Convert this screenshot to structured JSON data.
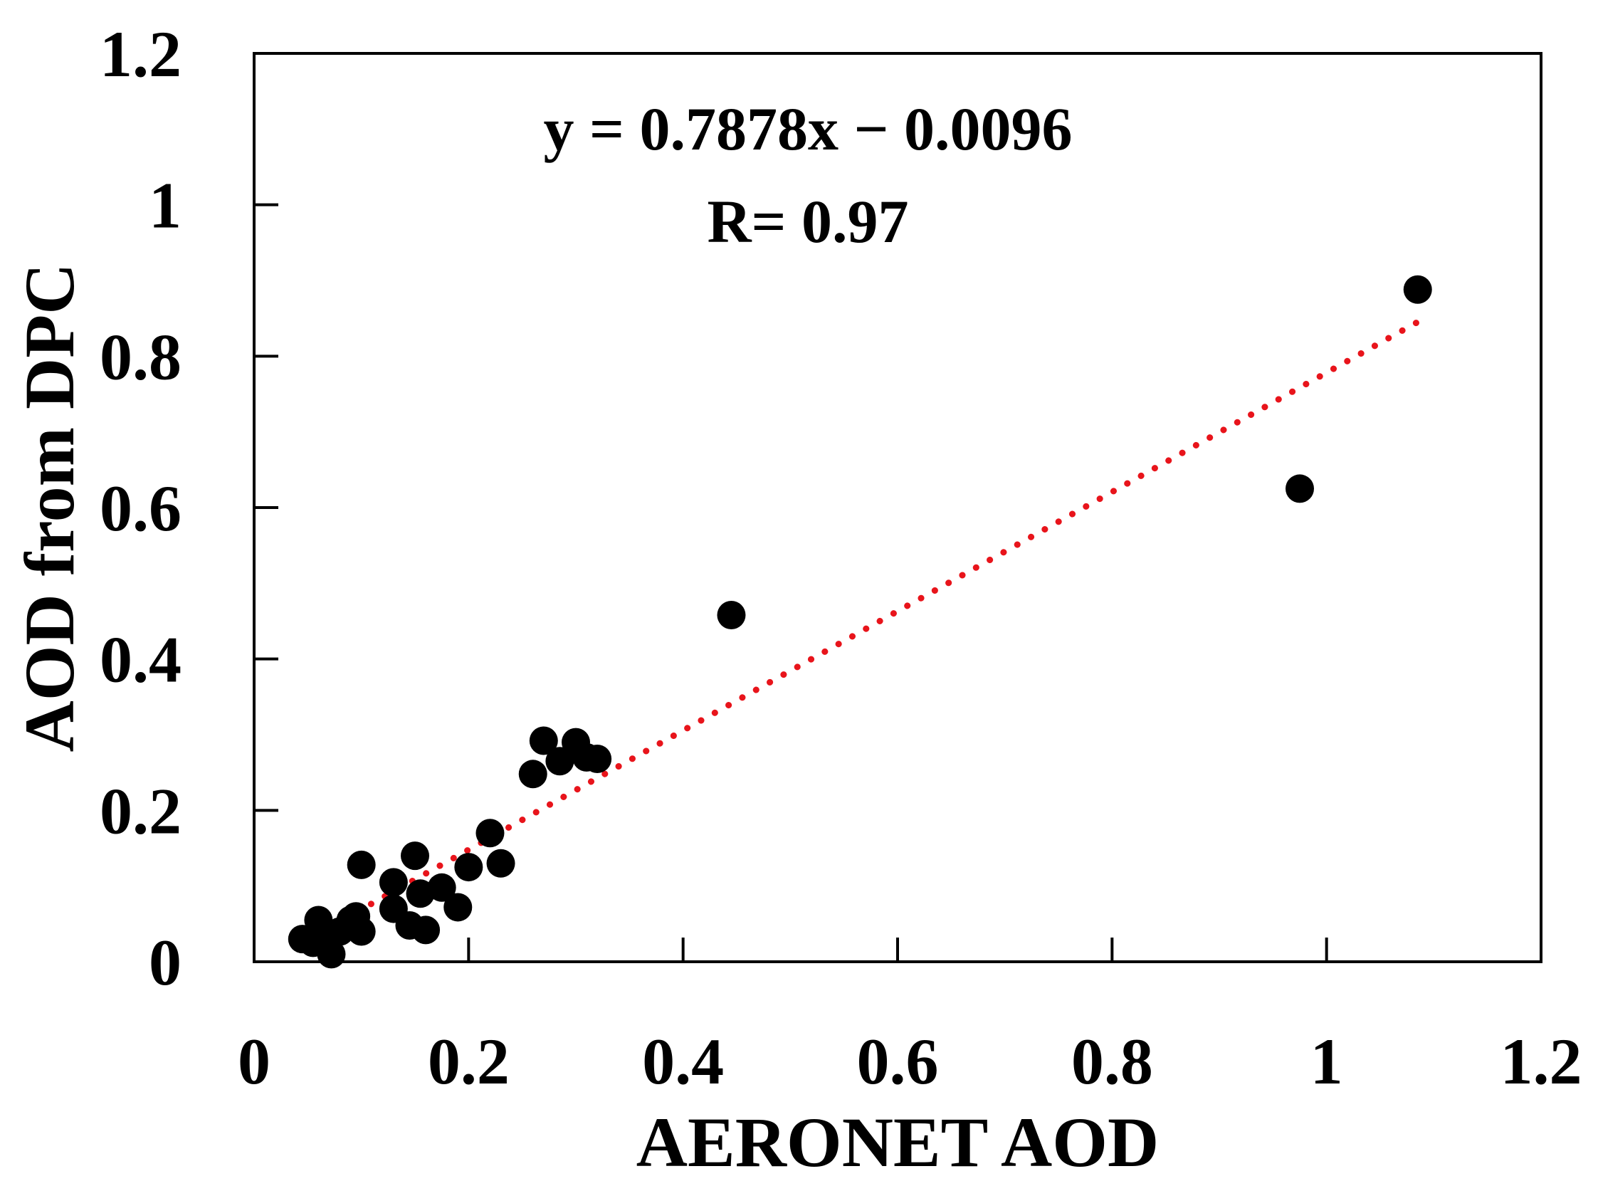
{
  "chart_data": {
    "type": "scatter",
    "title": "",
    "xlabel": "AERONET AOD",
    "ylabel": "AOD from DPC",
    "xlim": [
      0,
      1.2
    ],
    "ylim": [
      0,
      1.2
    ],
    "xticks": [
      {
        "value": 0,
        "label": "0"
      },
      {
        "value": 0.2,
        "label": "0.2"
      },
      {
        "value": 0.4,
        "label": "0.4"
      },
      {
        "value": 0.6,
        "label": "0.6"
      },
      {
        "value": 0.8,
        "label": "0.8"
      },
      {
        "value": 1.0,
        "label": "1"
      },
      {
        "value": 1.2,
        "label": "1.2"
      }
    ],
    "yticks": [
      {
        "value": 0,
        "label": "0"
      },
      {
        "value": 0.2,
        "label": "0.2"
      },
      {
        "value": 0.4,
        "label": "0.4"
      },
      {
        "value": 0.6,
        "label": "0.6"
      },
      {
        "value": 0.8,
        "label": "0.8"
      },
      {
        "value": 1.0,
        "label": "1"
      },
      {
        "value": 1.2,
        "label": "1.2"
      }
    ],
    "grid": false,
    "legend": "none",
    "point_color": "#000000",
    "trendline_color": "#e8141b",
    "annotations": {
      "equation": "y = 0.7878x − 0.0096",
      "r_value": "R= 0.97"
    },
    "trendline": {
      "slope": 0.7878,
      "intercept": -0.0096,
      "x_range": [
        0.045,
        1.085
      ],
      "style": "dotted"
    },
    "points": [
      {
        "x": 0.045,
        "y": 0.03
      },
      {
        "x": 0.055,
        "y": 0.025
      },
      {
        "x": 0.06,
        "y": 0.055
      },
      {
        "x": 0.065,
        "y": 0.035
      },
      {
        "x": 0.072,
        "y": 0.01
      },
      {
        "x": 0.08,
        "y": 0.04
      },
      {
        "x": 0.09,
        "y": 0.055
      },
      {
        "x": 0.095,
        "y": 0.06
      },
      {
        "x": 0.1,
        "y": 0.04
      },
      {
        "x": 0.1,
        "y": 0.128
      },
      {
        "x": 0.13,
        "y": 0.07
      },
      {
        "x": 0.13,
        "y": 0.105
      },
      {
        "x": 0.145,
        "y": 0.048
      },
      {
        "x": 0.15,
        "y": 0.14
      },
      {
        "x": 0.155,
        "y": 0.09
      },
      {
        "x": 0.16,
        "y": 0.042
      },
      {
        "x": 0.175,
        "y": 0.098
      },
      {
        "x": 0.19,
        "y": 0.072
      },
      {
        "x": 0.2,
        "y": 0.125
      },
      {
        "x": 0.22,
        "y": 0.17
      },
      {
        "x": 0.23,
        "y": 0.13
      },
      {
        "x": 0.26,
        "y": 0.248
      },
      {
        "x": 0.27,
        "y": 0.292
      },
      {
        "x": 0.285,
        "y": 0.265
      },
      {
        "x": 0.3,
        "y": 0.29
      },
      {
        "x": 0.31,
        "y": 0.27
      },
      {
        "x": 0.32,
        "y": 0.268
      },
      {
        "x": 0.445,
        "y": 0.458
      },
      {
        "x": 0.975,
        "y": 0.625
      },
      {
        "x": 1.085,
        "y": 0.888
      }
    ]
  }
}
